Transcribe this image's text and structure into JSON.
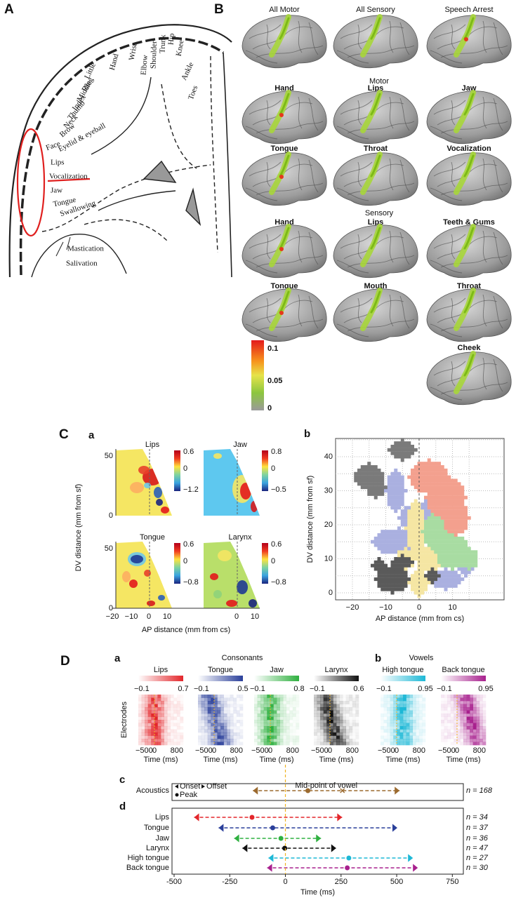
{
  "panel_a": {
    "label": "A",
    "labels": [
      "Toes",
      "Ankle",
      "Knee",
      "Hip",
      "Trunk",
      "Shoulder",
      "Elbow",
      "Wrist",
      "Hand",
      "Little",
      "Ring",
      "Middle",
      "Index",
      "Thumb",
      "Neck",
      "Brow",
      "Eyelid & eyeball",
      "Face",
      "Lips",
      "Vocalization",
      "Jaw",
      "Tongue",
      "Swallowing",
      "Mastication",
      "Salivation"
    ]
  },
  "panel_b": {
    "label": "B",
    "top": [
      "All Motor",
      "All Sensory",
      "Speech Arrest"
    ],
    "motor_title": "Motor",
    "motor": [
      "Hand",
      "Lips",
      "Jaw",
      "Tongue",
      "Throat",
      "Vocalization"
    ],
    "sensory_title": "Sensory",
    "sensory": [
      "Hand",
      "Lips",
      "Teeth & Gums",
      "Tongue",
      "Mouth",
      "Throat",
      "Cheek"
    ],
    "colorbar": [
      "0.1",
      "0.05",
      "0"
    ]
  },
  "panel_c": {
    "label": "C",
    "a": {
      "label": "a",
      "maps": [
        {
          "title": "Lips",
          "color": "#e3262b",
          "ticks": [
            "0.6",
            "0",
            "−1.2"
          ]
        },
        {
          "title": "Jaw",
          "color": "#2ca02c",
          "ticks": [
            "0.8",
            "0",
            "−0.5"
          ]
        },
        {
          "title": "Tongue",
          "color": "#2b4fa8",
          "ticks": [
            "0.6",
            "0",
            "−0.8"
          ]
        },
        {
          "title": "Larynx",
          "color": "#111111",
          "ticks": [
            "0.6",
            "0",
            "−0.8"
          ]
        }
      ],
      "yticks": [
        "50",
        "0"
      ],
      "xticks": [
        "−20",
        "−10",
        "0",
        "10"
      ],
      "ylabel": "DV distance (mm from sf)",
      "xlabel": "AP distance (mm from cs)"
    },
    "b": {
      "label": "b",
      "yticks": [
        "0",
        "10",
        "20",
        "30",
        "40"
      ],
      "xticks": [
        "−20",
        "−10",
        "0",
        "10"
      ],
      "ylabel": "DV distance (mm from sf)",
      "xlabel": "AP distance (mm from cs)"
    }
  },
  "panel_d": {
    "label": "D",
    "a": {
      "label": "a",
      "heading": "Consonants",
      "maps": [
        {
          "title": "Lips",
          "color": "#e3262b",
          "ticks": [
            "−0.1",
            "0.7"
          ]
        },
        {
          "title": "Tongue",
          "color": "#2a3f9a",
          "ticks": [
            "−0.1",
            "0.5"
          ]
        },
        {
          "title": "Jaw",
          "color": "#2fb040",
          "ticks": [
            "−0.1",
            "0.8"
          ]
        },
        {
          "title": "Larynx",
          "color": "#111111",
          "ticks": [
            "−0.1",
            "0.6"
          ]
        }
      ]
    },
    "b": {
      "label": "b",
      "heading": "Vowels",
      "maps": [
        {
          "title": "High tongue",
          "color": "#1db8d6",
          "ticks": [
            "−0.1",
            "0.95"
          ]
        },
        {
          "title": "Back tongue",
          "color": "#a8208e",
          "ticks": [
            "−0.1",
            "0.95"
          ]
        }
      ]
    },
    "ylabel": "Electrodes",
    "xticks": [
      "−500",
      "0",
      "800"
    ],
    "xlabel": "Time (ms)"
  },
  "chart_data": [
    {
      "type": "range",
      "label": "c",
      "xlim": [
        -500,
        790
      ],
      "series": [
        {
          "name": "Acoustics",
          "color": "#9b6a2f",
          "onset": -146,
          "peak": 101,
          "offset": 513,
          "midpoint": 256,
          "n": "n = 168"
        }
      ],
      "legend": [
        "Onset",
        "Offset",
        "Peak"
      ],
      "annotation": "Mid-point of vowel"
    },
    {
      "type": "range",
      "label": "d",
      "xlim": [
        -500,
        790
      ],
      "xticks": [
        -500,
        -250,
        0,
        250,
        500,
        750
      ],
      "xlabel": "Time (ms)",
      "series": [
        {
          "name": "Lips",
          "color": "#e3262b",
          "onset": -410,
          "peak": -150,
          "offset": 255,
          "n": "n = 34"
        },
        {
          "name": "Tongue",
          "color": "#2a3f9a",
          "onset": -300,
          "peak": -57,
          "offset": 503,
          "n": "n = 37"
        },
        {
          "name": "Jaw",
          "color": "#2fb040",
          "onset": -230,
          "peak": -20,
          "offset": 160,
          "n": "n = 36"
        },
        {
          "name": "Larynx",
          "color": "#111111",
          "onset": -193,
          "peak": -3,
          "offset": 228,
          "n": "n = 47"
        },
        {
          "name": "High tongue",
          "color": "#1db8d6",
          "onset": -76,
          "peak": 285,
          "offset": 573,
          "n": "n = 27"
        },
        {
          "name": "Back tongue",
          "color": "#a8208e",
          "onset": -82,
          "peak": 278,
          "offset": 595,
          "n": "n = 30"
        }
      ]
    }
  ]
}
